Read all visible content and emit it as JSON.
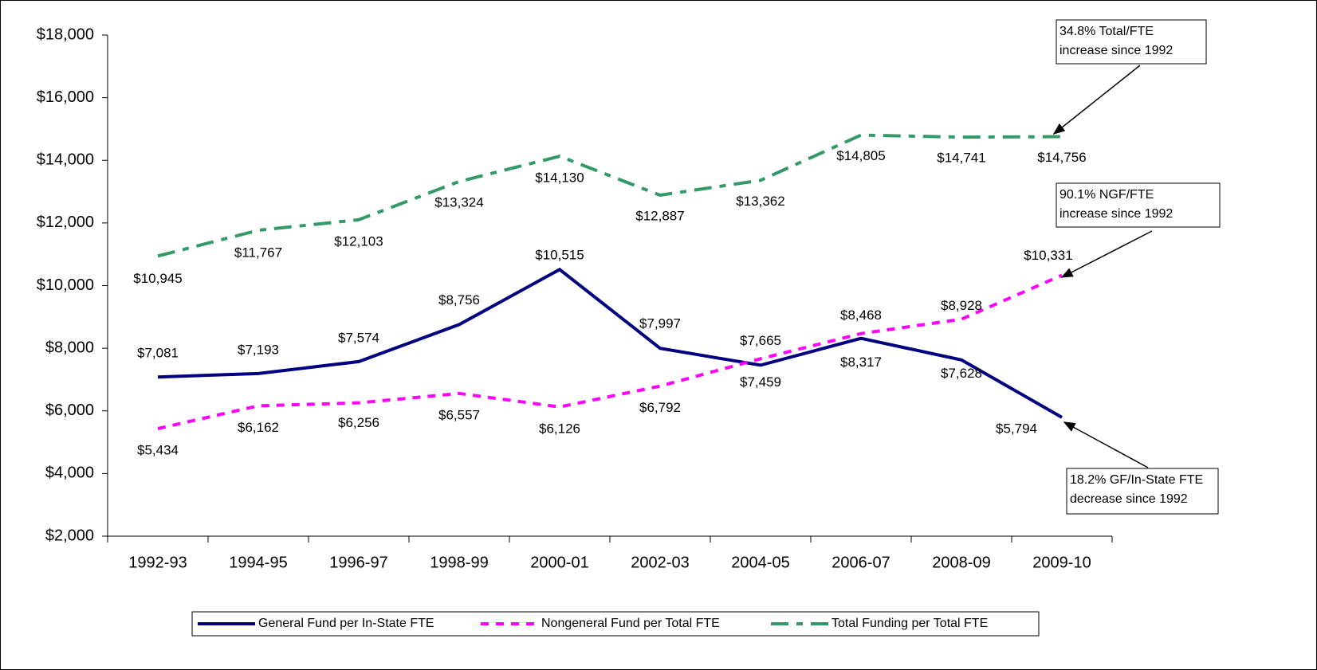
{
  "chart_data": {
    "type": "line",
    "categories": [
      "1992-93",
      "1994-95",
      "1996-97",
      "1998-99",
      "2000-01",
      "2002-03",
      "2004-05",
      "2006-07",
      "2008-09",
      "2009-10"
    ],
    "ylim": [
      2000,
      18000
    ],
    "yticks": [
      {
        "value": 2000,
        "label": "$2,000"
      },
      {
        "value": 4000,
        "label": "$4,000"
      },
      {
        "value": 6000,
        "label": "$6,000"
      },
      {
        "value": 8000,
        "label": "$8,000"
      },
      {
        "value": 10000,
        "label": "$10,000"
      },
      {
        "value": 12000,
        "label": "$12,000"
      },
      {
        "value": 14000,
        "label": "$14,000"
      },
      {
        "value": 16000,
        "label": "$16,000"
      },
      {
        "value": 18000,
        "label": "$18,000"
      }
    ],
    "grid": false,
    "legend": "bottom",
    "series": [
      {
        "name": "General Fund per In-State FTE",
        "color": "#000080",
        "style": "solid",
        "values": [
          7081,
          7193,
          7574,
          8756,
          10515,
          7997,
          7459,
          8317,
          7628,
          5794
        ],
        "value_labels": [
          "$7,081",
          "$7,193",
          "$7,574",
          "$8,756",
          "$10,515",
          "$7,997",
          "$7,459",
          "$8,317",
          "$7,628",
          "$5,794"
        ]
      },
      {
        "name": "Nongeneral Fund per Total FTE",
        "color": "#ff00ff",
        "style": "dashed",
        "values": [
          5434,
          6162,
          6256,
          6557,
          6126,
          6792,
          7665,
          8468,
          8928,
          10331
        ],
        "value_labels": [
          "$5,434",
          "$6,162",
          "$6,256",
          "$6,557",
          "$6,126",
          "$6,792",
          "$7,665",
          "$8,468",
          "$8,928",
          "$10,331"
        ]
      },
      {
        "name": "Total Funding per Total FTE",
        "color": "#339966",
        "style": "dashdot",
        "values": [
          10945,
          11767,
          12103,
          13324,
          14130,
          12887,
          13362,
          14805,
          14741,
          14756
        ],
        "value_labels": [
          "$10,945",
          "$11,767",
          "$12,103",
          "$13,324",
          "$14,130",
          "$12,887",
          "$13,362",
          "$14,805",
          "$14,741",
          "$14,756"
        ]
      }
    ],
    "annotations": [
      {
        "lines": [
          "34.8% Total/FTE",
          "increase since 1992"
        ]
      },
      {
        "lines": [
          "90.1% NGF/FTE",
          "increase since 1992"
        ]
      },
      {
        "lines": [
          "18.2% GF/In-State FTE",
          "decrease since 1992"
        ]
      }
    ]
  }
}
